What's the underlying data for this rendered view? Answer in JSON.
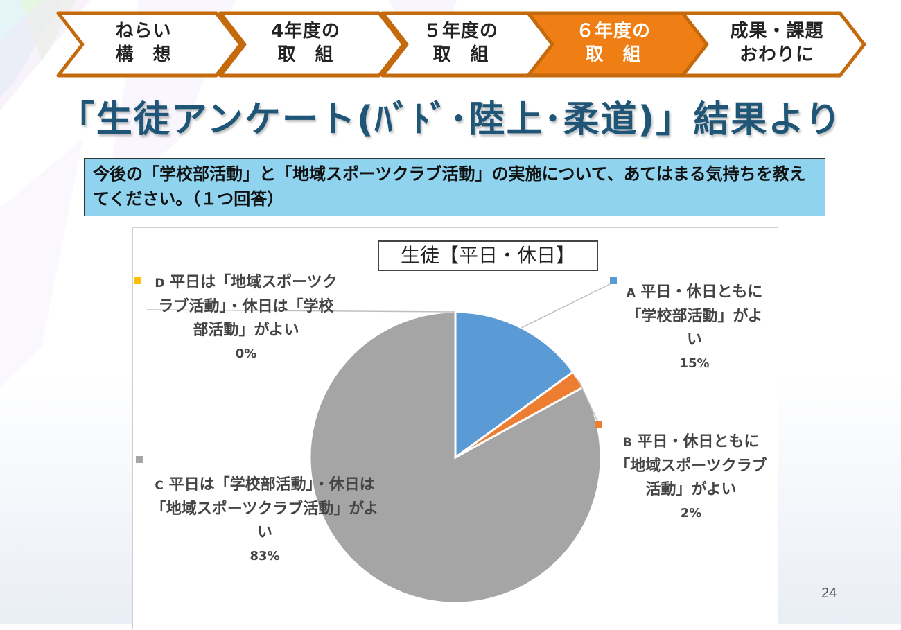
{
  "nav": {
    "steps": [
      {
        "line1": "ねらい",
        "line2": "構　想",
        "active": false
      },
      {
        "line1": "4年度の",
        "line2": "取　組",
        "active": false
      },
      {
        "line1": "５年度の",
        "line2": "取　組",
        "active": false
      },
      {
        "line1": "６年度の",
        "line2": "取　組",
        "active": true
      },
      {
        "line1": "成果・課題",
        "line2": "おわりに",
        "active": false
      }
    ]
  },
  "slide": {
    "title": "「生徒アンケート(ﾊﾞﾄﾞ･陸上･柔道)」結果より",
    "question": "今後の「学校部活動」と「地域スポーツクラブ活動」の実施について、あてはまる気持ちを教えてください。（１つ回答）",
    "page_number": "24"
  },
  "chart_data": {
    "type": "pie",
    "title": "生徒【平日・休日】",
    "slices": [
      {
        "key": "A",
        "label": "平日・休日ともに「学校部活動」がよい",
        "value": 15,
        "percent_label": "15%",
        "color": "#5b9bd5"
      },
      {
        "key": "B",
        "label": "平日・休日ともに「地域スポーツクラブ活動」がよい",
        "value": 2,
        "percent_label": "2%",
        "color": "#ed7d31"
      },
      {
        "key": "C",
        "label": "平日は「学校部活動」・休日は「地域スポーツクラブ活動」がよい",
        "value": 83,
        "percent_label": "83%",
        "color": "#a5a5a5"
      },
      {
        "key": "D",
        "label": "平日は「地域スポーツクラブ活動」・休日は「学校部活動」がよい",
        "value": 0,
        "percent_label": "0%",
        "color": "#ffc000"
      }
    ],
    "start_angle_deg": 0,
    "direction": "clockwise"
  }
}
